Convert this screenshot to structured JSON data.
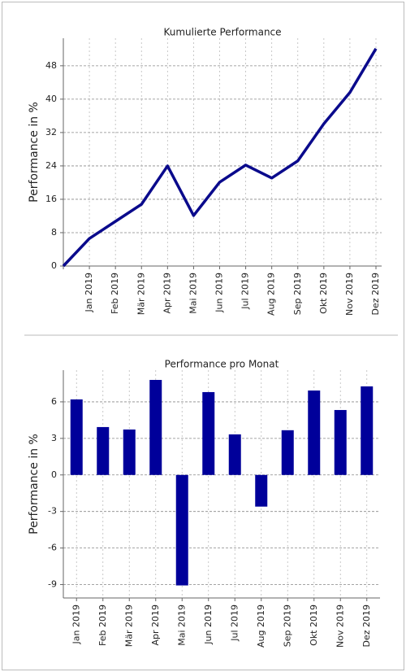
{
  "chart_data": [
    {
      "type": "line",
      "title": "Kumulierte Performance",
      "y_label": "Performance in %",
      "categories": [
        null,
        "Jan 2019",
        "Feb 2019",
        "Mär 2019",
        "Apr 2019",
        "Mai 2019",
        "Jun 2019",
        "Jul 2019",
        "Aug 2019",
        "Sep 2019",
        "Okt 2019",
        "Nov 2019",
        "Dez 2019"
      ],
      "values": [
        0,
        6.6,
        10.7,
        14.8,
        24,
        12.1,
        20.1,
        24.2,
        21.1,
        25.2,
        34.1,
        41.6,
        52.1
      ],
      "color": "#0a0a8c",
      "ylim": [
        0,
        54.6
      ],
      "yticks": [
        0,
        8,
        16,
        24,
        32,
        40,
        48
      ],
      "grid": true
    },
    {
      "type": "bar",
      "title": "Performance pro Monat",
      "y_label": "Performance in %",
      "categories": [
        "Jan 2019",
        "Feb 2019",
        "Mär 2019",
        "Apr 2019",
        "Mai 2019",
        "Jun 2019",
        "Jul 2019",
        "Aug 2019",
        "Sep 2019",
        "Okt 2019",
        "Nov 2019",
        "Dez 2019"
      ],
      "values": [
        6.2,
        3.93,
        3.73,
        7.8,
        -9.07,
        6.8,
        3.33,
        -2.6,
        3.67,
        6.93,
        5.33,
        7.27
      ],
      "color": "#00009a",
      "ylim": [
        -10.1,
        8.6
      ],
      "yticks": [
        -9,
        -6,
        -3,
        0,
        3,
        6
      ],
      "grid": true
    }
  ]
}
